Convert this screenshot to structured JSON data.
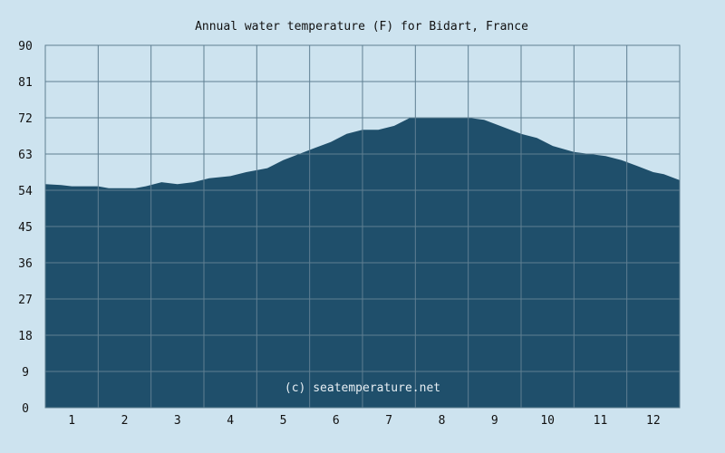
{
  "chart_data": {
    "type": "area",
    "title": "Annual water temperature (F) for Bidart, France",
    "xlabel": "",
    "ylabel": "",
    "x": [
      0.5,
      0.8,
      1.0,
      1.3,
      1.5,
      1.7,
      2.0,
      2.2,
      2.4,
      2.7,
      3.0,
      3.3,
      3.6,
      4.0,
      4.3,
      4.7,
      5.0,
      5.3,
      5.6,
      5.9,
      6.2,
      6.5,
      6.8,
      7.1,
      7.4,
      7.6,
      7.9,
      8.2,
      8.5,
      8.8,
      9.1,
      9.5,
      9.8,
      10.1,
      10.5,
      10.8,
      11.1,
      11.4,
      11.7,
      12.0,
      12.2,
      12.5
    ],
    "values": [
      55.5,
      55.3,
      55.0,
      55.0,
      55.0,
      54.5,
      54.5,
      54.5,
      55.0,
      56.0,
      55.5,
      56.0,
      57.0,
      57.5,
      58.5,
      59.5,
      61.5,
      63.0,
      64.5,
      66.0,
      68.0,
      69.0,
      69.0,
      70.0,
      72.0,
      72.0,
      72.0,
      72.0,
      72.0,
      71.5,
      70.0,
      68.0,
      67.0,
      65.0,
      63.5,
      63.0,
      62.5,
      61.5,
      60.0,
      58.5,
      58.0,
      56.5
    ],
    "xlim": [
      0.5,
      12.5
    ],
    "ylim": [
      0,
      90
    ],
    "x_ticks": [
      "1",
      "2",
      "3",
      "4",
      "5",
      "6",
      "7",
      "8",
      "9",
      "10",
      "11",
      "12"
    ],
    "y_ticks": [
      "0",
      "9",
      "18",
      "27",
      "36",
      "45",
      "54",
      "63",
      "72",
      "81",
      "90"
    ],
    "grid": true,
    "fill_color": "#1f4f6b",
    "grid_color": "#5f7f92",
    "watermark": "(c) seatemperature.net"
  }
}
